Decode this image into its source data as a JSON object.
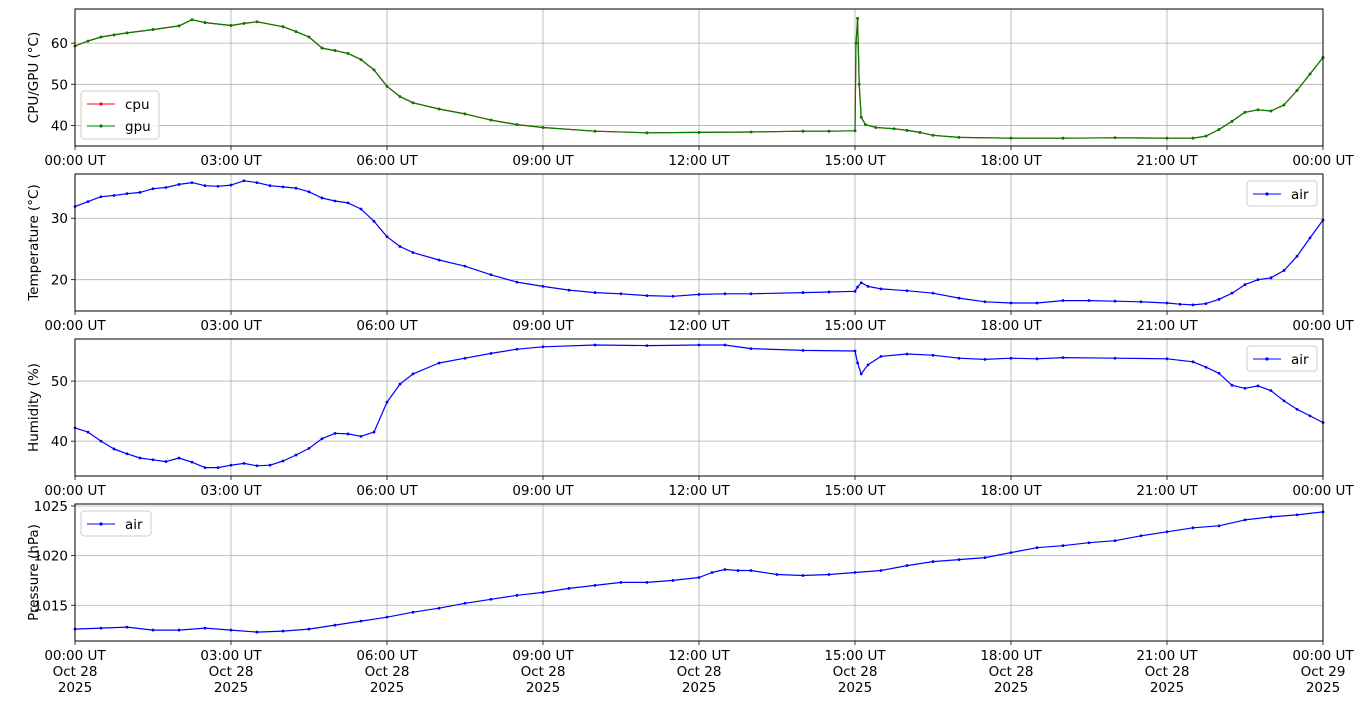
{
  "chart_data": [
    {
      "type": "line",
      "ylabel": "CPU/GPU (°C)",
      "ylim": [
        35,
        68.3
      ],
      "yticks": [
        40,
        50,
        60
      ],
      "xlim": [
        0,
        24
      ],
      "xtick_labels": [
        "00:00 UT",
        "03:00 UT",
        "06:00 UT",
        "09:00 UT",
        "12:00 UT",
        "15:00 UT",
        "18:00 UT",
        "21:00 UT",
        "00:00 UT"
      ],
      "grid": true,
      "legend_position": "lower-left",
      "series": [
        {
          "name": "cpu",
          "color": "#ff0000",
          "x": [
            0,
            0.25,
            0.5,
            0.75,
            1,
            1.5,
            2,
            2.25,
            2.5,
            3,
            3.25,
            3.5,
            4,
            4.25,
            4.5,
            4.75,
            5,
            5.25,
            5.5,
            5.75,
            6,
            6.25,
            6.5,
            7,
            7.5,
            8,
            8.5,
            9,
            10,
            11,
            12,
            13,
            14,
            14.5,
            15,
            15.02,
            15.05,
            15.08,
            15.12,
            15.2,
            15.4,
            15.75,
            16,
            16.25,
            16.5,
            17,
            18,
            19,
            20,
            21,
            21.5,
            21.75,
            22,
            22.25,
            22.5,
            22.75,
            23,
            23.25,
            23.5,
            23.75,
            24
          ],
          "values": [
            59.3,
            60.5,
            61.5,
            62,
            62.5,
            63.3,
            64.2,
            65.7,
            65,
            64.3,
            64.8,
            65.2,
            64,
            62.8,
            61.5,
            58.8,
            58.2,
            57.5,
            56,
            53.5,
            49.5,
            47,
            45.5,
            44,
            42.8,
            41.3,
            40.2,
            39.5,
            38.6,
            38.2,
            38.3,
            38.4,
            38.6,
            38.6,
            38.7,
            60,
            66,
            50,
            42,
            40.2,
            39.5,
            39.2,
            38.8,
            38.3,
            37.6,
            37.1,
            36.9,
            36.9,
            37,
            36.9,
            36.9,
            37.4,
            39,
            41,
            43.2,
            43.8,
            43.5,
            45,
            48.5,
            52.5,
            56.5
          ]
        },
        {
          "name": "gpu",
          "color": "#008000",
          "x": [
            0,
            0.25,
            0.5,
            0.75,
            1,
            1.5,
            2,
            2.25,
            2.5,
            3,
            3.25,
            3.5,
            4,
            4.25,
            4.5,
            4.75,
            5,
            5.25,
            5.5,
            5.75,
            6,
            6.25,
            6.5,
            7,
            7.5,
            8,
            8.5,
            9,
            10,
            11,
            12,
            13,
            14,
            14.5,
            15,
            15.02,
            15.05,
            15.08,
            15.12,
            15.2,
            15.4,
            15.75,
            16,
            16.25,
            16.5,
            17,
            18,
            19,
            20,
            21,
            21.5,
            21.75,
            22,
            22.25,
            22.5,
            22.75,
            23,
            23.25,
            23.5,
            23.75,
            24
          ],
          "values": [
            59.3,
            60.5,
            61.5,
            62,
            62.5,
            63.3,
            64.2,
            65.7,
            65,
            64.3,
            64.8,
            65.2,
            64,
            62.8,
            61.5,
            58.8,
            58.2,
            57.5,
            56,
            53.5,
            49.5,
            47,
            45.5,
            44,
            42.8,
            41.3,
            40.2,
            39.5,
            38.6,
            38.2,
            38.3,
            38.4,
            38.6,
            38.6,
            38.7,
            60,
            66,
            50,
            42,
            40.2,
            39.5,
            39.2,
            38.8,
            38.3,
            37.6,
            37.1,
            36.9,
            36.9,
            37,
            36.9,
            36.9,
            37.4,
            39,
            41,
            43.2,
            43.8,
            43.5,
            45,
            48.5,
            52.5,
            56.5
          ]
        }
      ]
    },
    {
      "type": "line",
      "ylabel": "Temperature (°C)",
      "ylim": [
        14.9,
        37.2
      ],
      "yticks": [
        20,
        30
      ],
      "xlim": [
        0,
        24
      ],
      "xtick_labels": [
        "00:00 UT",
        "03:00 UT",
        "06:00 UT",
        "09:00 UT",
        "12:00 UT",
        "15:00 UT",
        "18:00 UT",
        "21:00 UT",
        "00:00 UT"
      ],
      "grid": true,
      "legend_position": "upper-right",
      "series": [
        {
          "name": "air",
          "color": "#0000ff",
          "x": [
            0,
            0.25,
            0.5,
            0.75,
            1,
            1.25,
            1.5,
            1.75,
            2,
            2.25,
            2.5,
            2.75,
            3,
            3.25,
            3.5,
            3.75,
            4,
            4.25,
            4.5,
            4.75,
            5,
            5.25,
            5.5,
            5.75,
            6,
            6.25,
            6.5,
            7,
            7.5,
            8,
            8.5,
            9,
            9.5,
            10,
            10.5,
            11,
            11.5,
            12,
            12.5,
            13,
            14,
            14.5,
            15,
            15.05,
            15.12,
            15.25,
            15.5,
            16,
            16.5,
            17,
            17.5,
            18,
            18.5,
            19,
            19.5,
            20,
            20.5,
            21,
            21.25,
            21.5,
            21.75,
            22,
            22.25,
            22.5,
            22.75,
            23,
            23.25,
            23.5,
            23.75,
            24
          ],
          "values": [
            31.9,
            32.7,
            33.5,
            33.7,
            34,
            34.2,
            34.8,
            35,
            35.5,
            35.8,
            35.3,
            35.2,
            35.4,
            36.1,
            35.8,
            35.3,
            35.1,
            34.9,
            34.3,
            33.3,
            32.8,
            32.5,
            31.5,
            29.5,
            27,
            25.4,
            24.4,
            23.2,
            22.2,
            20.8,
            19.6,
            18.9,
            18.3,
            17.9,
            17.7,
            17.4,
            17.3,
            17.6,
            17.7,
            17.7,
            17.9,
            18,
            18.1,
            18.8,
            19.5,
            18.9,
            18.5,
            18.2,
            17.8,
            17,
            16.4,
            16.2,
            16.2,
            16.6,
            16.6,
            16.5,
            16.4,
            16.2,
            16,
            15.9,
            16.1,
            16.8,
            17.8,
            19.2,
            20,
            20.3,
            21.5,
            23.8,
            26.8,
            29.7
          ]
        }
      ]
    },
    {
      "type": "line",
      "ylabel": "Humidity (%)",
      "ylim": [
        34.2,
        57
      ],
      "yticks": [
        40,
        50
      ],
      "xlim": [
        0,
        24
      ],
      "xtick_labels": [
        "00:00 UT",
        "03:00 UT",
        "06:00 UT",
        "09:00 UT",
        "12:00 UT",
        "15:00 UT",
        "18:00 UT",
        "21:00 UT",
        "00:00 UT"
      ],
      "grid": true,
      "legend_position": "upper-right",
      "series": [
        {
          "name": "air",
          "color": "#0000ff",
          "x": [
            0,
            0.25,
            0.5,
            0.75,
            1,
            1.25,
            1.5,
            1.75,
            2,
            2.25,
            2.5,
            2.75,
            3,
            3.25,
            3.5,
            3.75,
            4,
            4.25,
            4.5,
            4.75,
            5,
            5.25,
            5.5,
            5.75,
            6,
            6.25,
            6.5,
            7,
            7.5,
            8,
            8.5,
            9,
            10,
            11,
            12,
            12.5,
            13,
            14,
            15,
            15.05,
            15.12,
            15.25,
            15.5,
            16,
            16.5,
            17,
            17.5,
            18,
            18.5,
            19,
            20,
            21,
            21.5,
            21.75,
            22,
            22.25,
            22.5,
            22.75,
            23,
            23.25,
            23.5,
            23.75,
            24
          ],
          "values": [
            42.2,
            41.5,
            40,
            38.7,
            37.9,
            37.2,
            36.9,
            36.6,
            37.2,
            36.5,
            35.6,
            35.6,
            36,
            36.3,
            35.9,
            36,
            36.7,
            37.7,
            38.8,
            40.4,
            41.3,
            41.2,
            40.8,
            41.5,
            46.5,
            49.5,
            51.2,
            53,
            53.8,
            54.6,
            55.3,
            55.7,
            56,
            55.9,
            56,
            56,
            55.4,
            55.1,
            55,
            53,
            51.2,
            52.7,
            54.1,
            54.5,
            54.3,
            53.8,
            53.6,
            53.8,
            53.7,
            53.9,
            53.8,
            53.7,
            53.2,
            52.3,
            51.3,
            49.3,
            48.8,
            49.2,
            48.4,
            46.7,
            45.3,
            44.2,
            43.1
          ]
        }
      ]
    },
    {
      "type": "line",
      "ylabel": "Pressure (hPa)",
      "ylim": [
        1011.4,
        1025.2
      ],
      "yticks": [
        1015,
        1020,
        1025
      ],
      "xlim": [
        0,
        24
      ],
      "xtick_labels": [
        [
          "00:00 UT",
          "Oct 28",
          "2025"
        ],
        [
          "03:00 UT",
          "Oct 28",
          "2025"
        ],
        [
          "06:00 UT",
          "Oct 28",
          "2025"
        ],
        [
          "09:00 UT",
          "Oct 28",
          "2025"
        ],
        [
          "12:00 UT",
          "Oct 28",
          "2025"
        ],
        [
          "15:00 UT",
          "Oct 28",
          "2025"
        ],
        [
          "18:00 UT",
          "Oct 28",
          "2025"
        ],
        [
          "21:00 UT",
          "Oct 28",
          "2025"
        ],
        [
          "00:00 UT",
          "Oct 29",
          "2025"
        ]
      ],
      "grid": true,
      "legend_position": "upper-left",
      "series": [
        {
          "name": "air",
          "color": "#0000ff",
          "x": [
            0,
            0.5,
            1,
            1.5,
            2,
            2.5,
            3,
            3.5,
            4,
            4.5,
            5,
            5.5,
            6,
            6.5,
            7,
            7.5,
            8,
            8.5,
            9,
            9.5,
            10,
            10.5,
            11,
            11.5,
            12,
            12.25,
            12.5,
            12.75,
            13,
            13.5,
            14,
            14.5,
            15,
            15.5,
            16,
            16.5,
            17,
            17.5,
            18,
            18.5,
            19,
            19.5,
            20,
            20.5,
            21,
            21.5,
            22,
            22.5,
            23,
            23.5,
            24
          ],
          "values": [
            1012.6,
            1012.7,
            1012.8,
            1012.5,
            1012.5,
            1012.7,
            1012.5,
            1012.3,
            1012.4,
            1012.6,
            1013,
            1013.4,
            1013.8,
            1014.3,
            1014.7,
            1015.2,
            1015.6,
            1016.0,
            1016.3,
            1016.7,
            1017.0,
            1017.3,
            1017.3,
            1017.5,
            1017.8,
            1018.3,
            1018.6,
            1018.5,
            1018.5,
            1018.1,
            1018.0,
            1018.1,
            1018.3,
            1018.5,
            1019.0,
            1019.4,
            1019.6,
            1019.8,
            1020.3,
            1020.8,
            1021.0,
            1021.3,
            1021.5,
            1022.0,
            1022.4,
            1022.8,
            1023.0,
            1023.6,
            1023.9,
            1024.1,
            1024.4
          ]
        }
      ]
    }
  ]
}
